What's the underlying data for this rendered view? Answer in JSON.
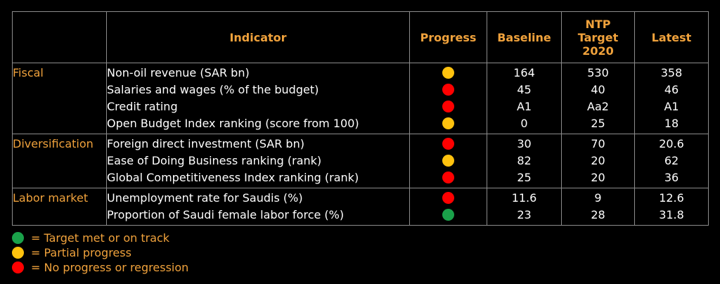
{
  "colors": {
    "green": "#1aa14a",
    "yellow": "#ffc20e",
    "red": "#ff0000",
    "header": "#f0a23c",
    "background": "#000000"
  },
  "headers": {
    "indicator": "Indicator",
    "progress": "Progress",
    "baseline": "Baseline",
    "target_line1": "NTP",
    "target_line2": "Target",
    "target_line3": "2020",
    "latest": "Latest"
  },
  "groups": [
    {
      "category": "Fiscal",
      "rows": [
        {
          "indicator": "Non-oil revenue (SAR bn)",
          "status": "yellow",
          "baseline": "164",
          "target": "530",
          "latest": "358"
        },
        {
          "indicator": "Salaries and wages (% of the budget)",
          "status": "red",
          "baseline": "45",
          "target": "40",
          "latest": "46"
        },
        {
          "indicator": "Credit rating",
          "status": "red",
          "baseline": "A1",
          "target": "Aa2",
          "latest": "A1"
        },
        {
          "indicator": "Open Budget Index ranking (score from 100)",
          "status": "yellow",
          "baseline": "0",
          "target": "25",
          "latest": "18"
        }
      ]
    },
    {
      "category": "Diversification",
      "rows": [
        {
          "indicator": "Foreign direct investment (SAR bn)",
          "status": "red",
          "baseline": "30",
          "target": "70",
          "latest": "20.6"
        },
        {
          "indicator": "Ease of Doing Business ranking (rank)",
          "status": "yellow",
          "baseline": "82",
          "target": "20",
          "latest": "62"
        },
        {
          "indicator": "Global Competitiveness Index ranking (rank)",
          "status": "red",
          "baseline": "25",
          "target": "20",
          "latest": "36"
        }
      ]
    },
    {
      "category": "Labor market",
      "rows": [
        {
          "indicator": "Unemployment rate for Saudis (%)",
          "status": "red",
          "baseline": "11.6",
          "target": "9",
          "latest": "12.6"
        },
        {
          "indicator": "Proportion of Saudi female labor force (%)",
          "status": "green",
          "baseline": "23",
          "target": "28",
          "latest": "31.8"
        }
      ]
    }
  ],
  "legend": [
    {
      "status": "green",
      "label": "= Target met or on track"
    },
    {
      "status": "yellow",
      "label": "= Partial progress"
    },
    {
      "status": "red",
      "label": "= No progress or regression"
    }
  ]
}
